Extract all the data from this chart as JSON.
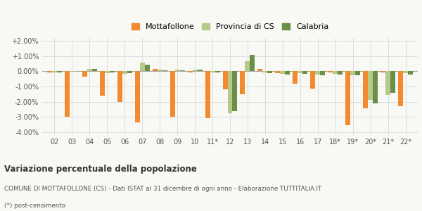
{
  "categories": [
    "02",
    "03",
    "04",
    "05",
    "06",
    "07",
    "08",
    "09",
    "10",
    "11*",
    "12",
    "13",
    "14",
    "15",
    "16",
    "17",
    "18*",
    "19*",
    "20*",
    "21*",
    "22*"
  ],
  "mottafollone": [
    -0.0005,
    -0.03,
    -0.0035,
    -0.016,
    -0.02,
    -0.0335,
    0.0015,
    -0.03,
    -0.0005,
    -0.031,
    -0.012,
    -0.015,
    0.0015,
    -0.001,
    -0.008,
    -0.0115,
    -0.0005,
    -0.0355,
    -0.0245,
    -0.0005,
    -0.023
  ],
  "provincia_cs": [
    -0.0005,
    -0.0002,
    0.0018,
    -0.001,
    -0.0015,
    0.006,
    0.0012,
    0.0012,
    0.001,
    -0.0005,
    -0.0275,
    0.0065,
    -0.0008,
    -0.0018,
    -0.0012,
    -0.002,
    -0.0018,
    -0.0025,
    -0.019,
    -0.0155,
    -0.001
  ],
  "calabria": [
    -0.0005,
    0.0,
    0.0015,
    -0.0005,
    -0.0013,
    0.0045,
    0.0008,
    0.0005,
    0.0012,
    -0.0007,
    -0.026,
    0.011,
    -0.001,
    -0.002,
    -0.0015,
    -0.0025,
    -0.0022,
    -0.0025,
    -0.021,
    -0.014,
    -0.002
  ],
  "color_mottafollone": "#f28a30",
  "color_provincia": "#b5c98a",
  "color_calabria": "#6b8f47",
  "ylim": [
    -0.042,
    0.022
  ],
  "yticks": [
    -0.04,
    -0.03,
    -0.02,
    -0.01,
    0.0,
    0.01,
    0.02
  ],
  "ytick_labels": [
    "-4.00%",
    "-3.00%",
    "-2.00%",
    "-1.00%",
    "0.00%",
    "+1.00%",
    "+2.00%"
  ],
  "title_bold": "Variazione percentuale della popolazione",
  "subtitle1": "COMUNE DI MOTTAFOLLONE (CS) - Dati ISTAT al 31 dicembre di ogni anno - Elaborazione TUTTITALIA.IT",
  "subtitle2": "(*) post-censimento",
  "legend_labels": [
    "Mottafollone",
    "Provincia di CS",
    "Calabria"
  ],
  "bg_color": "#f8f8f5",
  "grid_color": "#dddddd"
}
